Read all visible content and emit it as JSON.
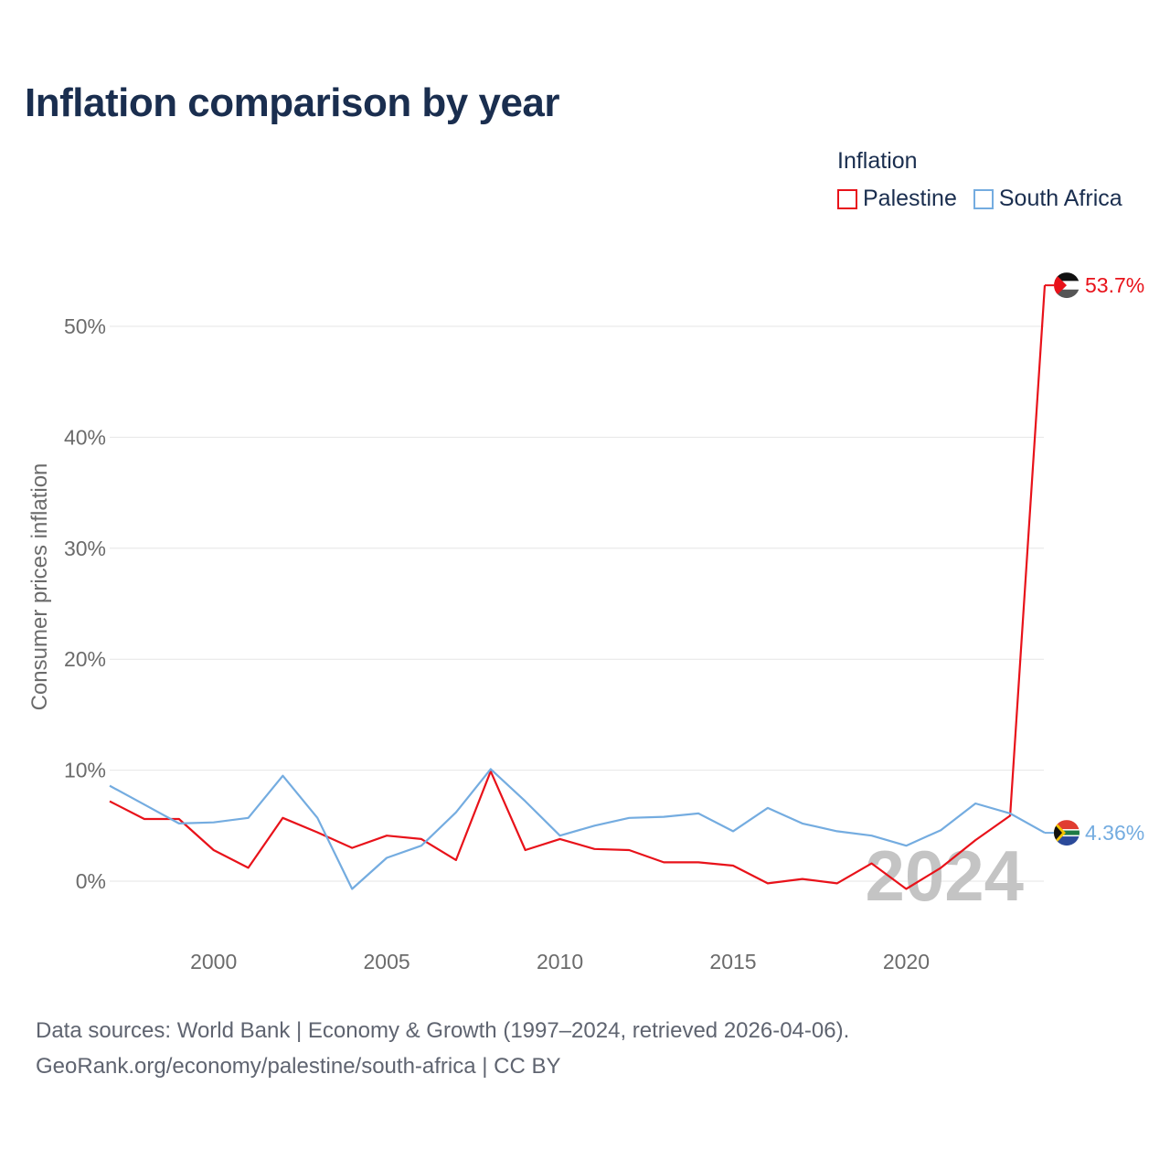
{
  "title": "Inflation comparison by year",
  "legend": {
    "title": "Inflation",
    "items": [
      {
        "label": "Palestine",
        "color": "#e8121a"
      },
      {
        "label": "South Africa",
        "color": "#74ace0"
      }
    ]
  },
  "chart_data": {
    "type": "line",
    "title": "Inflation comparison by year",
    "xlabel": "",
    "ylabel": "Consumer prices inflation",
    "xlim": [
      1997,
      2024
    ],
    "ylim": [
      -5,
      55
    ],
    "grid": true,
    "x_ticks": [
      2000,
      2005,
      2010,
      2015,
      2020
    ],
    "y_ticks": [
      0,
      10,
      20,
      30,
      40,
      50
    ],
    "y_tick_labels": [
      "0%",
      "10%",
      "20%",
      "30%",
      "40%",
      "50%"
    ],
    "x": [
      1997,
      1998,
      1999,
      2000,
      2001,
      2002,
      2003,
      2004,
      2005,
      2006,
      2007,
      2008,
      2009,
      2010,
      2011,
      2012,
      2013,
      2014,
      2015,
      2016,
      2017,
      2018,
      2019,
      2020,
      2021,
      2022,
      2023,
      2024
    ],
    "series": [
      {
        "name": "Palestine",
        "color": "#e8121a",
        "values": [
          7.2,
          5.6,
          5.6,
          2.8,
          1.2,
          5.7,
          4.4,
          3.0,
          4.1,
          3.8,
          1.9,
          9.9,
          2.8,
          3.8,
          2.9,
          2.8,
          1.7,
          1.7,
          1.4,
          -0.2,
          0.2,
          -0.2,
          1.6,
          -0.7,
          1.2,
          3.7,
          5.9,
          53.7
        ],
        "end_label": "53.7%"
      },
      {
        "name": "South Africa",
        "color": "#74ace0",
        "values": [
          8.6,
          6.9,
          5.2,
          5.3,
          5.7,
          9.5,
          5.7,
          -0.7,
          2.1,
          3.2,
          6.2,
          10.1,
          7.2,
          4.1,
          5.0,
          5.7,
          5.8,
          6.1,
          4.5,
          6.6,
          5.2,
          4.5,
          4.1,
          3.2,
          4.6,
          7.0,
          6.1,
          4.36
        ],
        "end_label": "4.36%"
      }
    ],
    "watermark_year": "2024"
  },
  "footer": {
    "line1": "Data sources: World Bank | Economy & Growth (1997–2024, retrieved 2026-04-06).",
    "line2": "GeoRank.org/economy/palestine/south-africa | CC BY"
  }
}
